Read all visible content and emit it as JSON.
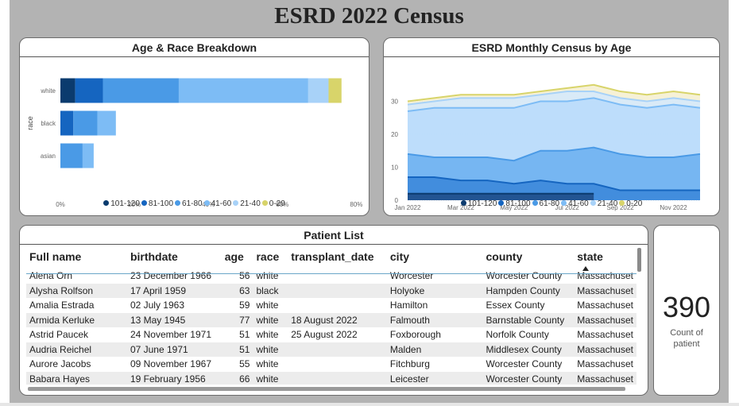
{
  "page_title": "ESRD 2022 Census",
  "colors": {
    "age_101_120": "#0b3b6e",
    "age_81_100": "#1565c0",
    "age_61_80": "#4a9ae6",
    "age_41_60": "#7dbcf5",
    "age_21_40": "#a8d2f8",
    "age_0_20": "#d8d46a"
  },
  "bar_chart": {
    "title": "Age & Race Breakdown",
    "y_axis_title": "race",
    "legend": [
      "101-120",
      "81-100",
      "61-80",
      "41-60",
      "21-40",
      "0-20"
    ],
    "x_ticks": [
      "0%",
      "20%",
      "40%",
      "60%",
      "80%"
    ]
  },
  "area_chart": {
    "title": "ESRD Monthly Census by Age",
    "legend": [
      "101-120",
      "81-100",
      "61-80",
      "41-60",
      "21-40",
      "0-20"
    ],
    "x_ticks": [
      "Jan 2022",
      "Mar 2022",
      "May 2022",
      "Jul 2022",
      "Sep 2022",
      "Nov 2022"
    ],
    "y_ticks": [
      "0",
      "10",
      "20",
      "30"
    ]
  },
  "chart_data": [
    {
      "type": "bar",
      "orientation": "horizontal",
      "stacked": true,
      "title": "Age & Race Breakdown",
      "ylabel": "race",
      "xlabel": "",
      "categories": [
        "white",
        "black",
        "asian"
      ],
      "xlim": [
        0,
        80
      ],
      "x_unit": "%",
      "series": [
        {
          "name": "101-120",
          "values": [
            4,
            0,
            0
          ]
        },
        {
          "name": "81-100",
          "values": [
            7.5,
            3.5,
            0
          ]
        },
        {
          "name": "61-80",
          "values": [
            20.5,
            6.5,
            6
          ]
        },
        {
          "name": "41-60",
          "values": [
            35,
            5,
            3
          ]
        },
        {
          "name": "21-40",
          "values": [
            5.5,
            0,
            0
          ]
        },
        {
          "name": "0-20",
          "values": [
            3.5,
            0,
            0
          ]
        }
      ],
      "legend_position": "bottom",
      "grid": false
    },
    {
      "type": "area",
      "stacked": false,
      "title": "ESRD Monthly Census by Age",
      "xlabel": "",
      "ylabel": "",
      "x": [
        "Jan 2022",
        "Feb 2022",
        "Mar 2022",
        "Apr 2022",
        "May 2022",
        "Jun 2022",
        "Jul 2022",
        "Aug 2022",
        "Sep 2022",
        "Oct 2022",
        "Nov 2022",
        "Dec 2022"
      ],
      "ylim": [
        0,
        35
      ],
      "series": [
        {
          "name": "101-120",
          "values": [
            2,
            2,
            2,
            2,
            2,
            2,
            2,
            2,
            null,
            null,
            null,
            null
          ]
        },
        {
          "name": "81-100",
          "values": [
            7,
            7,
            6,
            6,
            5,
            6,
            5,
            5,
            3,
            3,
            3,
            3
          ]
        },
        {
          "name": "61-80",
          "values": [
            14,
            13,
            13,
            13,
            12,
            15,
            15,
            16,
            14,
            13,
            13,
            14
          ]
        },
        {
          "name": "41-60",
          "values": [
            27,
            28,
            28,
            28,
            28,
            30,
            30,
            31,
            29,
            28,
            29,
            28
          ]
        },
        {
          "name": "21-40",
          "values": [
            29,
            30,
            31,
            31,
            31,
            32,
            33,
            33,
            31,
            30,
            31,
            30
          ]
        },
        {
          "name": "0-20",
          "values": [
            30,
            31,
            32,
            32,
            32,
            33,
            34,
            35,
            33,
            32,
            33,
            32
          ]
        }
      ],
      "legend_position": "bottom",
      "grid": true
    }
  ],
  "patient_list": {
    "title": "Patient List",
    "columns": [
      "Full name",
      "birthdate",
      "age",
      "race",
      "transplant_date",
      "city",
      "county",
      "state"
    ],
    "rows": [
      [
        "Alena Orn",
        "23 December 1966",
        "56",
        "white",
        "",
        "Worcester",
        "Worcester County",
        "Massachuset"
      ],
      [
        "Alysha Rolfson",
        "17 April 1959",
        "63",
        "black",
        "",
        "Holyoke",
        "Hampden County",
        "Massachuset"
      ],
      [
        "Amalia Estrada",
        "02 July 1963",
        "59",
        "white",
        "",
        "Hamilton",
        "Essex County",
        "Massachuset"
      ],
      [
        "Armida Kerluke",
        "13 May 1945",
        "77",
        "white",
        "18 August 2022",
        "Falmouth",
        "Barnstable County",
        "Massachuset"
      ],
      [
        "Astrid Paucek",
        "24 November 1971",
        "51",
        "white",
        "25 August 2022",
        "Foxborough",
        "Norfolk County",
        "Massachuset"
      ],
      [
        "Audria Reichel",
        "07 June 1971",
        "51",
        "white",
        "",
        "Malden",
        "Middlesex County",
        "Massachuset"
      ],
      [
        "Aurore Jacobs",
        "09 November 1967",
        "55",
        "white",
        "",
        "Fitchburg",
        "Worcester County",
        "Massachuset"
      ],
      [
        "Babara Hayes",
        "19 February 1956",
        "66",
        "white",
        "",
        "Leicester",
        "Worcester County",
        "Massachuset"
      ]
    ]
  },
  "kpi": {
    "value": "390",
    "label": "Count of patient"
  }
}
